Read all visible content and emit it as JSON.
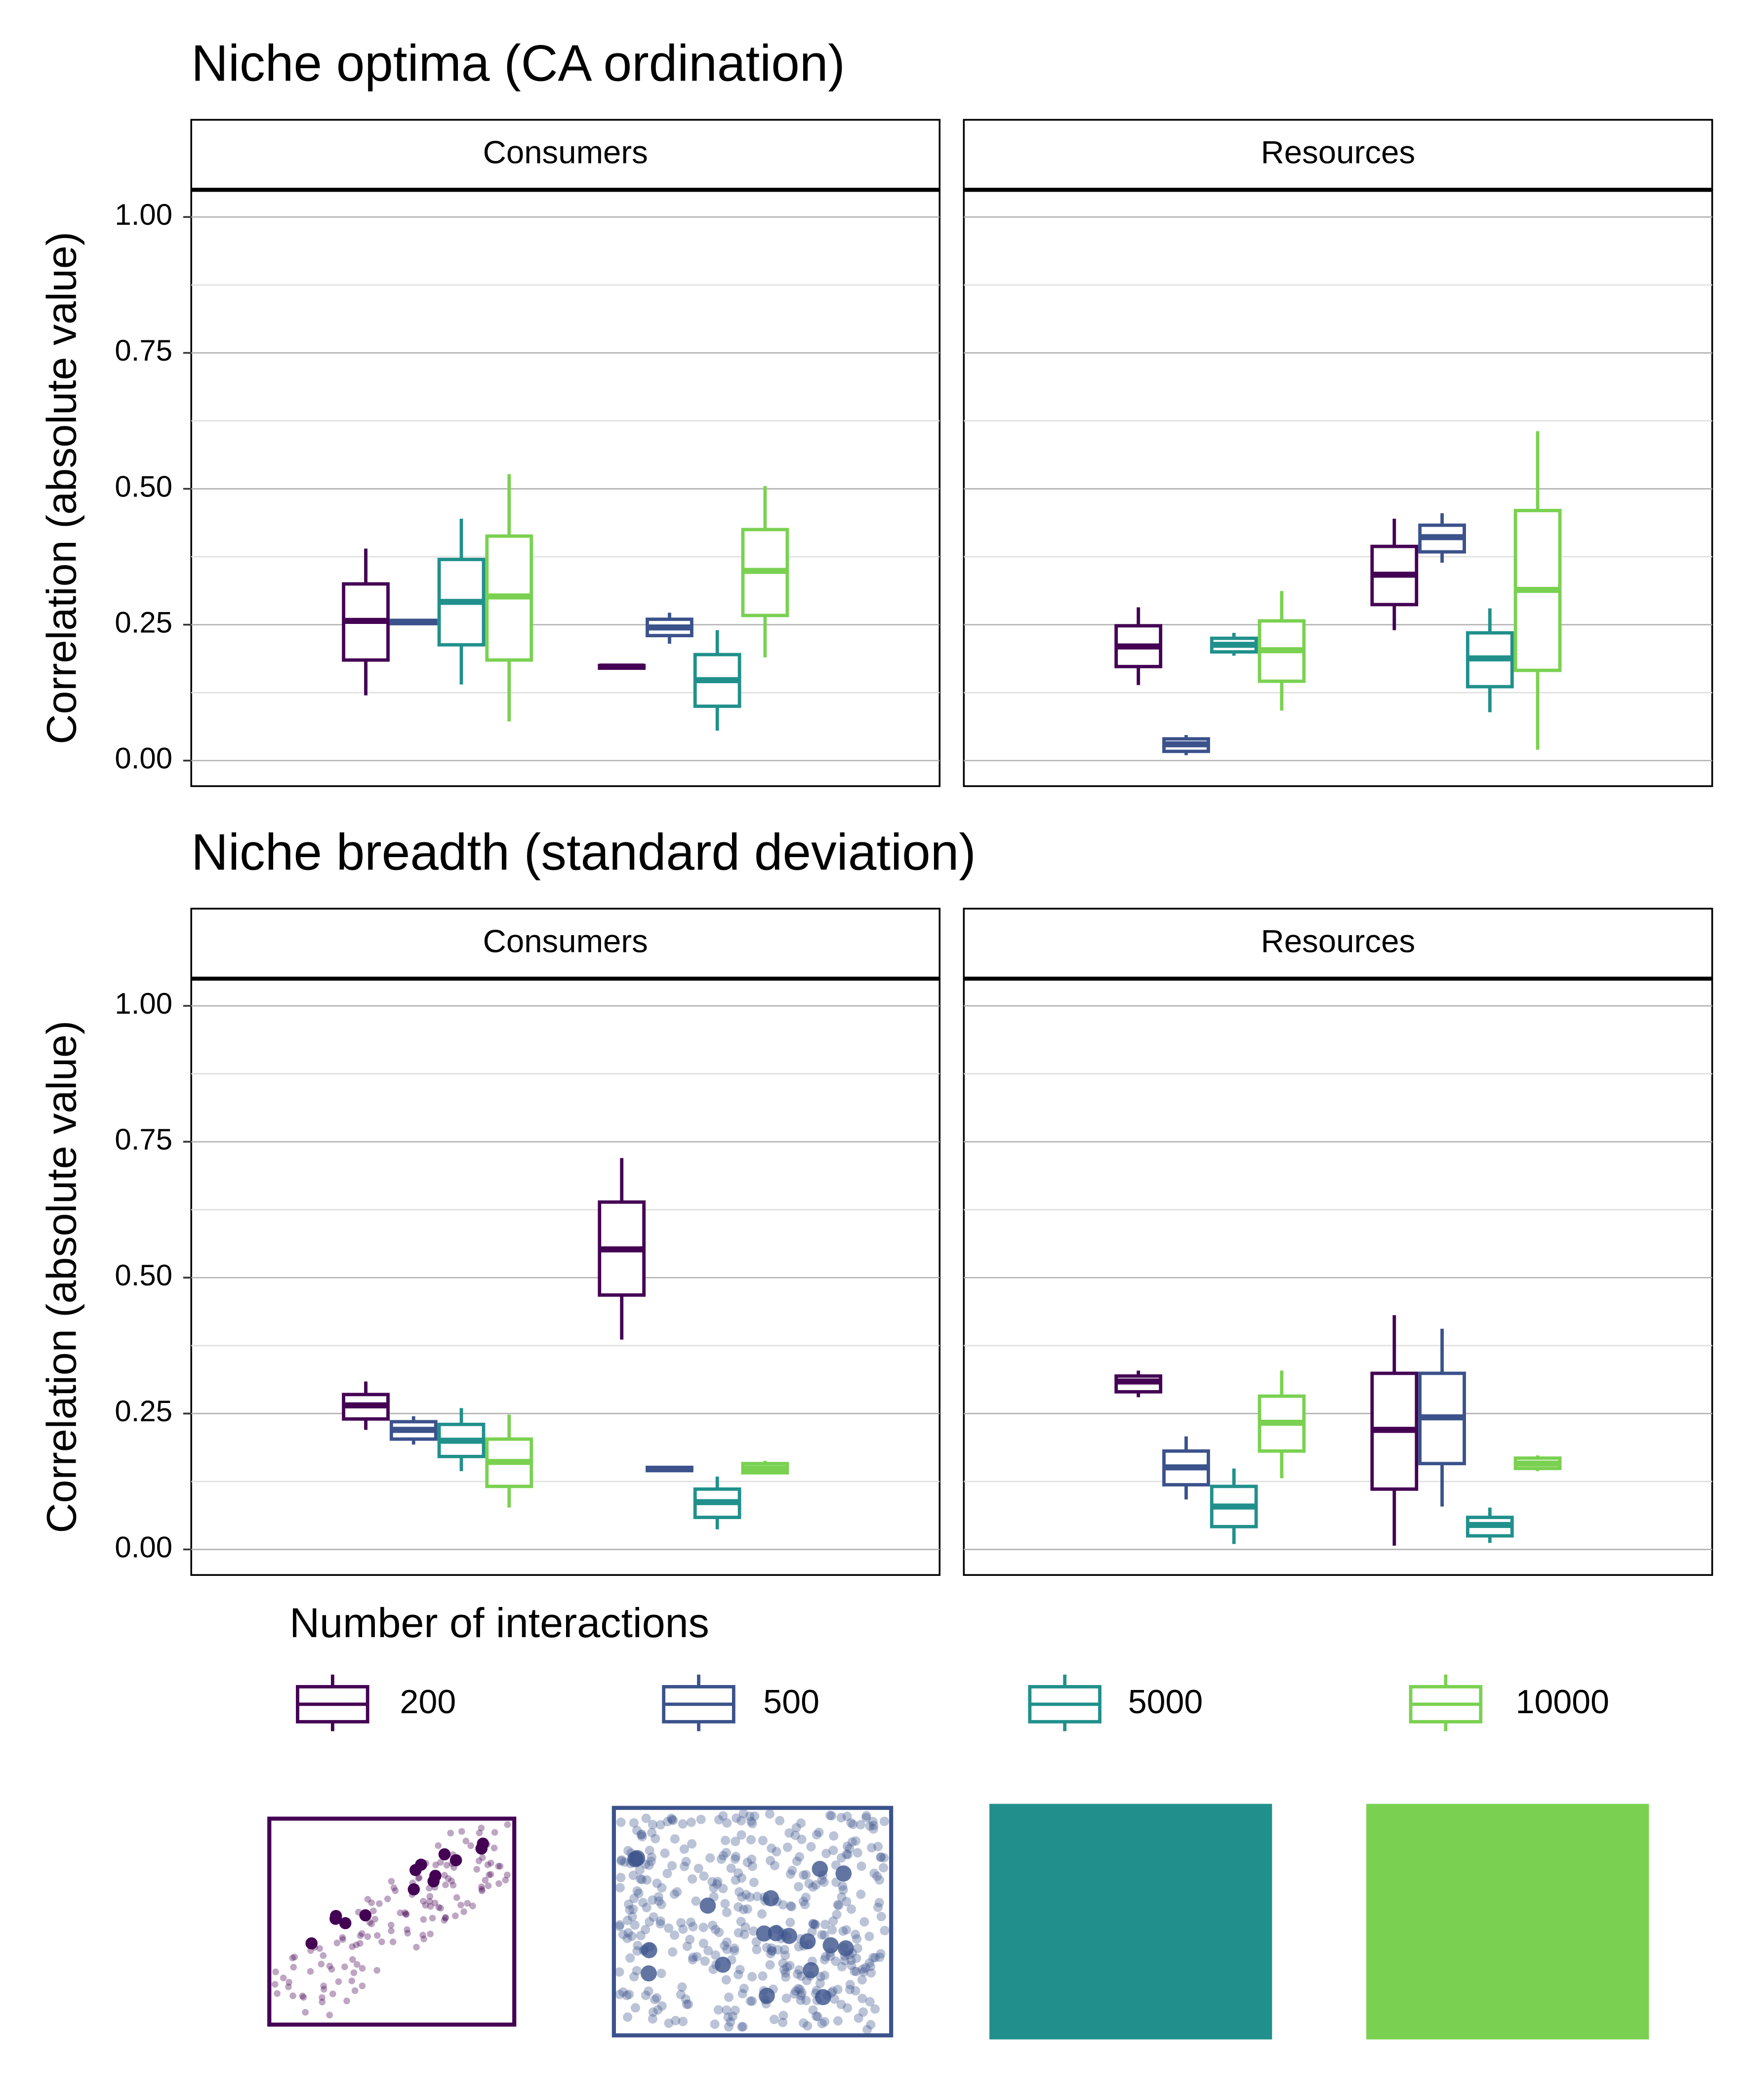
{
  "chart_data": [
    {
      "type": "box",
      "title": "Niche optima (CA ordination)",
      "y_label": "Correlation (absolute value)",
      "ylim": [
        -0.047,
        1.05
      ],
      "yticks": [
        {
          "value": 0,
          "label": "0.00"
        },
        0.25,
        {
          "value": 0.5,
          "label": "0.50"
        },
        0.75,
        {
          "value": 1,
          "label": "1.00"
        }
      ],
      "minor_yticks": [
        0.125,
        0.375,
        0.625,
        0.875
      ],
      "grid": true,
      "facets": [
        {
          "label": "Consumers",
          "series": [
            {
              "name": "200",
              "color": "#440154",
              "boxes": [
                {
                  "low": 0.12,
                  "q1": 0.185,
                  "median": 0.257,
                  "q3": 0.325,
                  "high": 0.39
                },
                {
                  "low": 0.168,
                  "q1": 0.17,
                  "median": 0.173,
                  "q3": 0.175,
                  "high": 0.178
                }
              ]
            },
            {
              "name": "500",
              "color": "#3b528b",
              "boxes": [
                {
                  "low": 0.25,
                  "q1": 0.252,
                  "median": 0.255,
                  "q3": 0.258,
                  "high": 0.26
                },
                {
                  "low": 0.215,
                  "q1": 0.23,
                  "median": 0.245,
                  "q3": 0.26,
                  "high": 0.272
                }
              ]
            },
            {
              "name": "5000",
              "color": "#21908c",
              "boxes": [
                {
                  "low": 0.14,
                  "q1": 0.213,
                  "median": 0.292,
                  "q3": 0.37,
                  "high": 0.445
                },
                {
                  "low": 0.055,
                  "q1": 0.1,
                  "median": 0.148,
                  "q3": 0.195,
                  "high": 0.24
                }
              ]
            },
            {
              "name": "10000",
              "color": "#7ad151",
              "boxes": [
                {
                  "low": 0.072,
                  "q1": 0.185,
                  "median": 0.302,
                  "q3": 0.413,
                  "high": 0.527
                },
                {
                  "low": 0.19,
                  "q1": 0.267,
                  "median": 0.349,
                  "q3": 0.425,
                  "high": 0.505
                }
              ]
            }
          ]
        },
        {
          "label": "Resources",
          "series": [
            {
              "name": "200",
              "color": "#440154",
              "boxes": [
                {
                  "low": 0.139,
                  "q1": 0.173,
                  "median": 0.21,
                  "q3": 0.248,
                  "high": 0.282
                },
                {
                  "low": 0.24,
                  "q1": 0.287,
                  "median": 0.342,
                  "q3": 0.394,
                  "high": 0.445
                }
              ]
            },
            {
              "name": "500",
              "color": "#3b528b",
              "boxes": [
                {
                  "low": 0.01,
                  "q1": 0.017,
                  "median": 0.03,
                  "q3": 0.04,
                  "high": 0.047
                },
                {
                  "low": 0.364,
                  "q1": 0.384,
                  "median": 0.411,
                  "q3": 0.433,
                  "high": 0.455
                }
              ]
            },
            {
              "name": "5000",
              "color": "#21908c",
              "boxes": [
                {
                  "low": 0.193,
                  "q1": 0.2,
                  "median": 0.213,
                  "q3": 0.225,
                  "high": 0.235
                },
                {
                  "low": 0.089,
                  "q1": 0.136,
                  "median": 0.188,
                  "q3": 0.235,
                  "high": 0.28
                }
              ]
            },
            {
              "name": "10000",
              "color": "#7ad151",
              "boxes": [
                {
                  "low": 0.092,
                  "q1": 0.146,
                  "median": 0.203,
                  "q3": 0.257,
                  "high": 0.312
                },
                {
                  "low": 0.02,
                  "q1": 0.166,
                  "median": 0.314,
                  "q3": 0.46,
                  "high": 0.606
                }
              ]
            }
          ]
        }
      ]
    },
    {
      "type": "box",
      "title": "Niche breadth (standard deviation)",
      "y_label": "Correlation (absolute value)",
      "ylim": [
        -0.047,
        1.05
      ],
      "yticks": [
        {
          "value": 0,
          "label": "0.00"
        },
        0.25,
        {
          "value": 0.5,
          "label": "0.50"
        },
        0.75,
        {
          "value": 1,
          "label": "1.00"
        }
      ],
      "minor_yticks": [
        0.125,
        0.375,
        0.625,
        0.875
      ],
      "grid": true,
      "facets": [
        {
          "label": "Consumers",
          "series": [
            {
              "name": "200",
              "color": "#440154",
              "boxes": [
                {
                  "low": 0.22,
                  "q1": 0.24,
                  "median": 0.265,
                  "q3": 0.285,
                  "high": 0.309
                },
                {
                  "low": 0.386,
                  "q1": 0.468,
                  "median": 0.552,
                  "q3": 0.639,
                  "high": 0.72
                }
              ]
            },
            {
              "name": "500",
              "color": "#3b528b",
              "boxes": [
                {
                  "low": 0.193,
                  "q1": 0.203,
                  "median": 0.22,
                  "q3": 0.235,
                  "high": 0.245
                },
                {
                  "low": 0.143,
                  "q1": 0.145,
                  "median": 0.148,
                  "q3": 0.151,
                  "high": 0.153
                }
              ]
            },
            {
              "name": "5000",
              "color": "#21908c",
              "boxes": [
                {
                  "low": 0.144,
                  "q1": 0.171,
                  "median": 0.2,
                  "q3": 0.23,
                  "high": 0.26
                },
                {
                  "low": 0.037,
                  "q1": 0.059,
                  "median": 0.087,
                  "q3": 0.111,
                  "high": 0.134
                }
              ]
            },
            {
              "name": "10000",
              "color": "#7ad151",
              "boxes": [
                {
                  "low": 0.077,
                  "q1": 0.116,
                  "median": 0.161,
                  "q3": 0.203,
                  "high": 0.248
                },
                {
                  "low": 0.139,
                  "q1": 0.141,
                  "median": 0.149,
                  "q3": 0.158,
                  "high": 0.163
                }
              ]
            }
          ]
        },
        {
          "label": "Resources",
          "series": [
            {
              "name": "200",
              "color": "#440154",
              "boxes": [
                {
                  "low": 0.28,
                  "q1": 0.29,
                  "median": 0.309,
                  "q3": 0.319,
                  "high": 0.329
                },
                {
                  "low": 0.007,
                  "q1": 0.111,
                  "median": 0.22,
                  "q3": 0.324,
                  "high": 0.431
                }
              ]
            },
            {
              "name": "500",
              "color": "#3b528b",
              "boxes": [
                {
                  "low": 0.092,
                  "q1": 0.119,
                  "median": 0.151,
                  "q3": 0.181,
                  "high": 0.208
                },
                {
                  "low": 0.079,
                  "q1": 0.158,
                  "median": 0.243,
                  "q3": 0.324,
                  "high": 0.406
                }
              ]
            },
            {
              "name": "5000",
              "color": "#21908c",
              "boxes": [
                {
                  "low": 0.01,
                  "q1": 0.042,
                  "median": 0.079,
                  "q3": 0.116,
                  "high": 0.149
                },
                {
                  "low": 0.012,
                  "q1": 0.025,
                  "median": 0.045,
                  "q3": 0.059,
                  "high": 0.077
                }
              ]
            },
            {
              "name": "10000",
              "color": "#7ad151",
              "boxes": [
                {
                  "low": 0.131,
                  "q1": 0.181,
                  "median": 0.233,
                  "q3": 0.282,
                  "high": 0.329
                },
                {
                  "low": 0.144,
                  "q1": 0.149,
                  "median": 0.158,
                  "q3": 0.168,
                  "high": 0.173
                }
              ]
            }
          ]
        }
      ]
    }
  ],
  "legend_title": "Number of interactions"
}
